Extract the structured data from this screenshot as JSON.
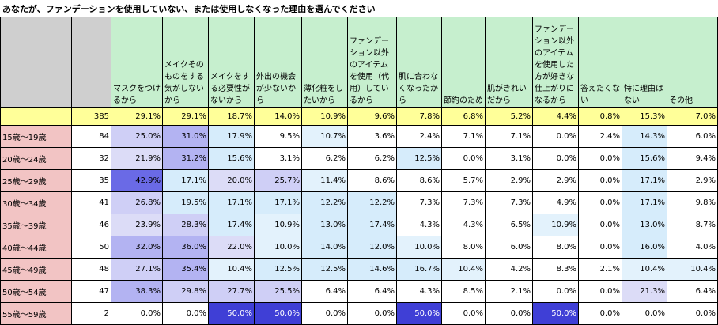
{
  "title": "あなたが、ファンデーションを使用していない、または使用しなくなった理由を選んでください",
  "chart_data": {
    "type": "table",
    "title": "あなたが、ファンデーションを使用していない、または使用しなくなった理由を選んでください",
    "columns": [
      "マスクをつけるから",
      "メイクそのものをする気がしないから",
      "メイクをする必要性がないから",
      "外出の機会が少ないから",
      "薄化粧をしたいから",
      "ファンデーション以外のアイテムを使用（代用）しているから",
      "肌に合わなくなったから",
      "節約のため",
      "肌がきれいだから",
      "ファンデーション以外のアイテムを使用した方が好きな仕上がりになるから",
      "答えたくない",
      "特に理由はない",
      "その他"
    ],
    "total": {
      "label": "",
      "n": 385,
      "values": [
        29.1,
        29.1,
        18.7,
        14.0,
        10.9,
        9.6,
        7.8,
        6.8,
        5.2,
        4.4,
        0.8,
        15.3,
        7.0
      ]
    },
    "rows": [
      {
        "label": "15歳～19歳",
        "n": 84,
        "values": [
          25.0,
          31.0,
          17.9,
          9.5,
          10.7,
          3.6,
          2.4,
          7.1,
          7.1,
          0.0,
          2.4,
          14.3,
          6.0
        ]
      },
      {
        "label": "20歳～24歳",
        "n": 32,
        "values": [
          21.9,
          31.2,
          15.6,
          3.1,
          6.2,
          6.2,
          12.5,
          0.0,
          3.1,
          0.0,
          0.0,
          15.6,
          9.4
        ]
      },
      {
        "label": "25歳～29歳",
        "n": 35,
        "values": [
          42.9,
          17.1,
          20.0,
          25.7,
          11.4,
          8.6,
          8.6,
          5.7,
          2.9,
          2.9,
          0.0,
          17.1,
          2.9
        ]
      },
      {
        "label": "30歳～34歳",
        "n": 41,
        "values": [
          26.8,
          19.5,
          17.1,
          17.1,
          12.2,
          12.2,
          7.3,
          7.3,
          7.3,
          4.9,
          0.0,
          17.1,
          9.8
        ]
      },
      {
        "label": "35歳～39歳",
        "n": 46,
        "values": [
          23.9,
          28.3,
          17.4,
          10.9,
          13.0,
          17.4,
          4.3,
          4.3,
          6.5,
          10.9,
          0.0,
          13.0,
          8.7
        ]
      },
      {
        "label": "40歳～44歳",
        "n": 50,
        "values": [
          32.0,
          36.0,
          22.0,
          10.0,
          14.0,
          12.0,
          10.0,
          8.0,
          6.0,
          8.0,
          0.0,
          16.0,
          4.0
        ]
      },
      {
        "label": "45歳～49歳",
        "n": 48,
        "values": [
          27.1,
          35.4,
          10.4,
          12.5,
          12.5,
          14.6,
          16.7,
          10.4,
          4.2,
          8.3,
          2.1,
          10.4,
          10.4
        ]
      },
      {
        "label": "50歳～54歳",
        "n": 47,
        "values": [
          38.3,
          29.8,
          27.7,
          25.5,
          6.4,
          6.4,
          4.3,
          8.5,
          2.1,
          0.0,
          0.0,
          21.3,
          6.4
        ]
      },
      {
        "label": "55歳～59歳",
        "n": 2,
        "values": [
          0.0,
          0.0,
          50.0,
          50.0,
          0.0,
          0.0,
          50.0,
          0.0,
          0.0,
          50.0,
          0.0,
          0.0,
          0.0
        ]
      }
    ],
    "value_unit": "%"
  }
}
